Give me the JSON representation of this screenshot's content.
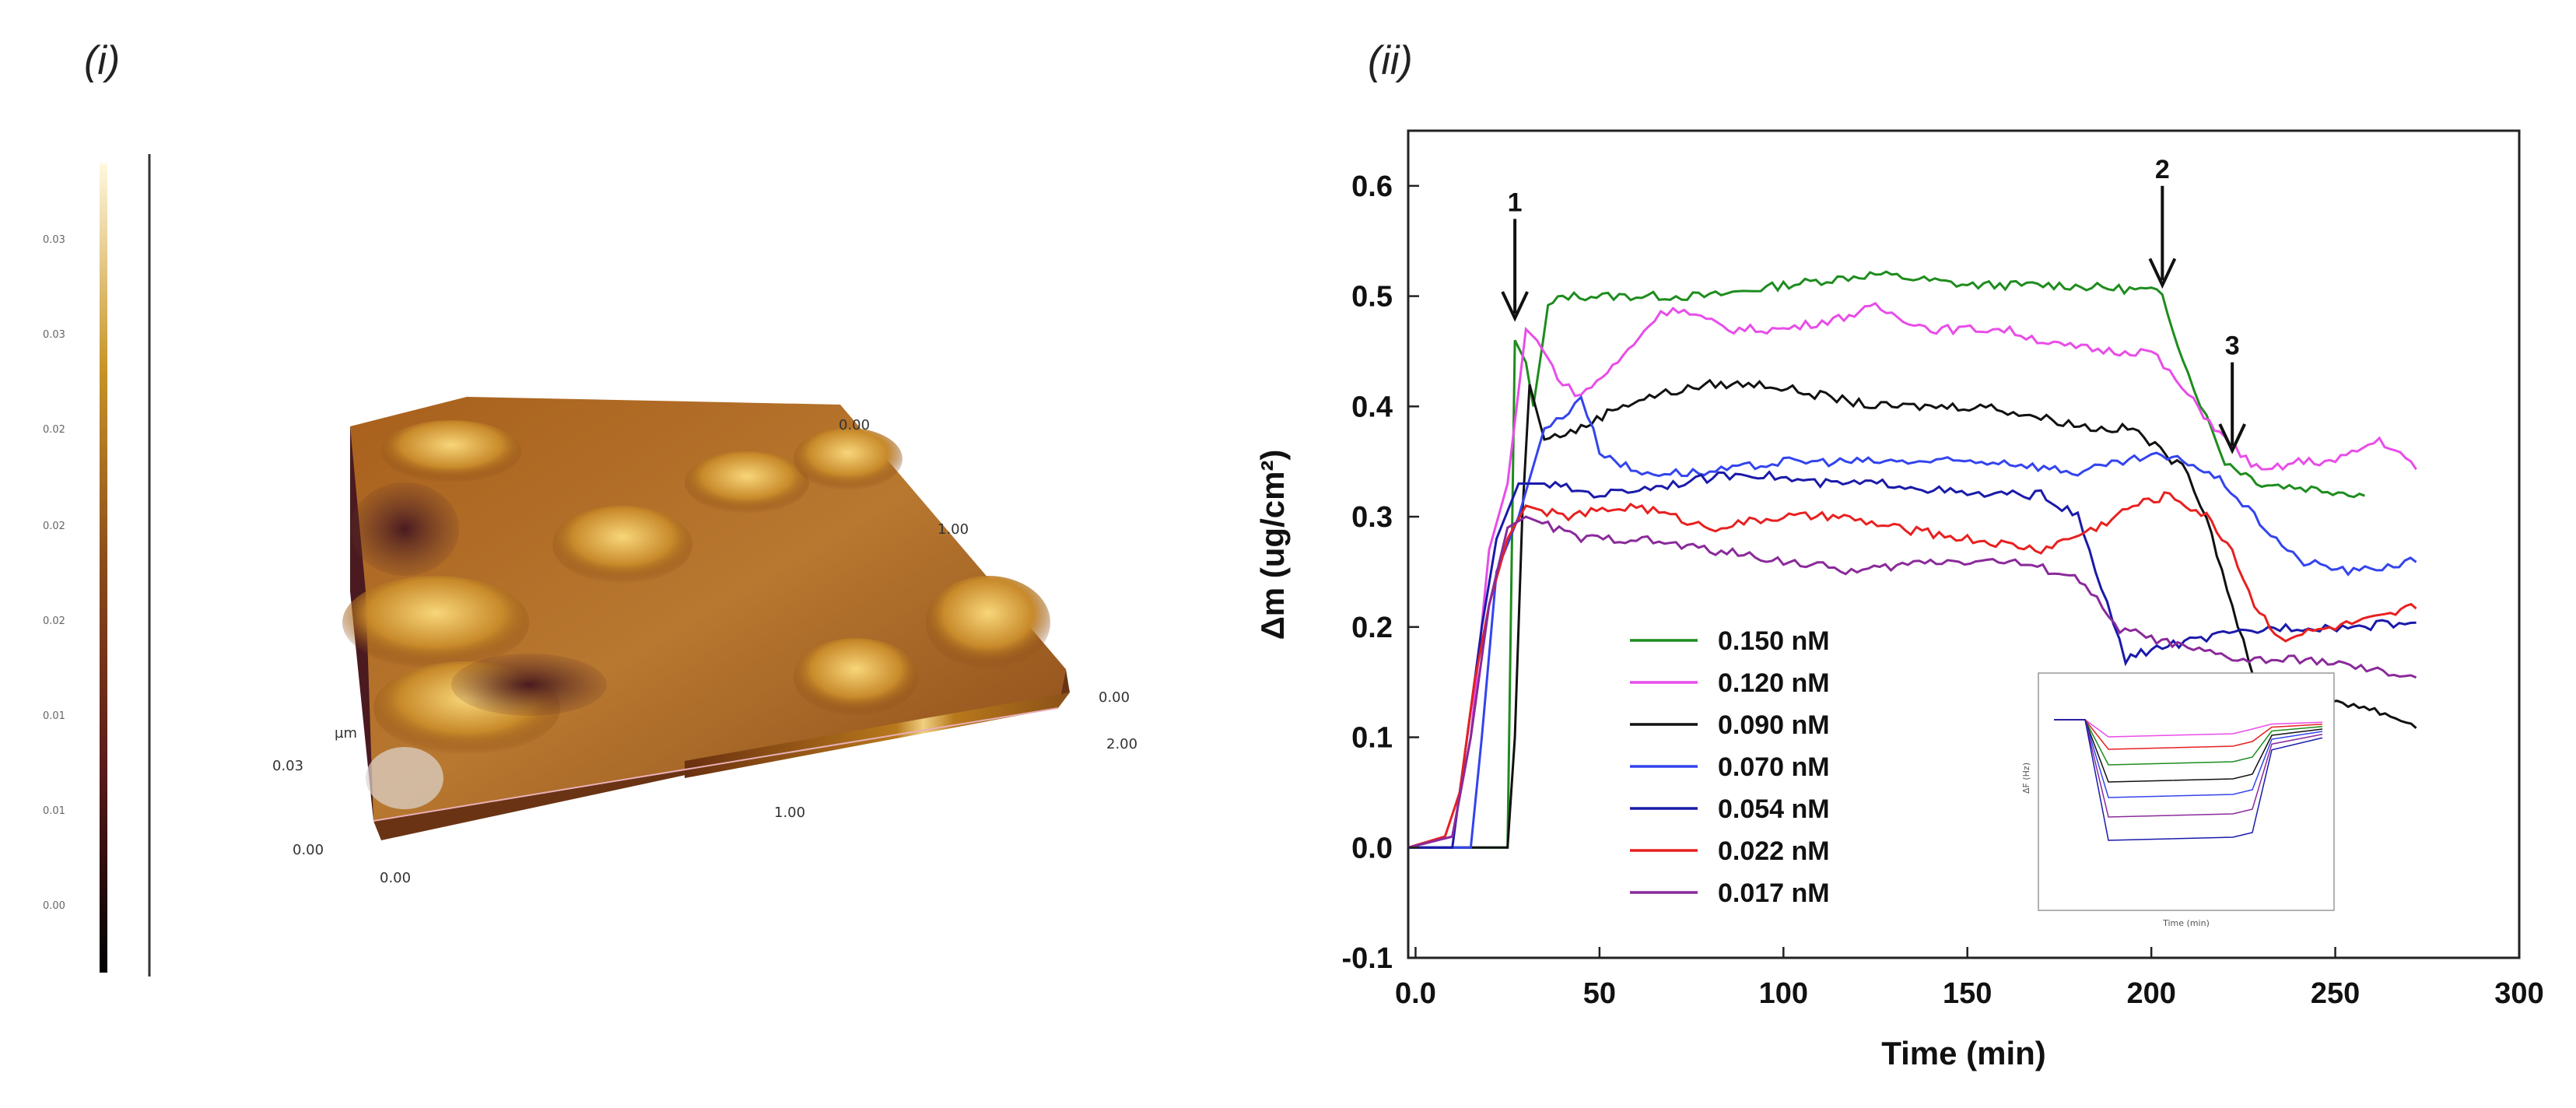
{
  "panels": {
    "left_label": "(i)",
    "right_label": "(ii)"
  },
  "afm": {
    "colorbar_ticks": [
      "0.03",
      "0.03",
      "0.02",
      "0.02",
      "0.02",
      "0.01",
      "0.01",
      "0.00"
    ],
    "z_unit": "µm",
    "z_top": "0.03",
    "z_bottom": "0.00",
    "x_origin": "0.00",
    "x_mid": "1.00",
    "right_top": "0.00",
    "right_bottom": "2.00",
    "back_top": "0.00",
    "back_mid": "1.00"
  },
  "chart_data": {
    "type": "line",
    "title": "",
    "xlabel": "Time (min)",
    "ylabel": "Δm (ug/cm²)",
    "xlim": [
      -2,
      300
    ],
    "ylim": [
      -0.1,
      0.65
    ],
    "xticks": [
      "0.0",
      "50",
      "100",
      "150",
      "200",
      "250",
      "300"
    ],
    "xtick_values": [
      0,
      50,
      100,
      150,
      200,
      250,
      300
    ],
    "yticks": [
      "-0.1",
      "0.0",
      "0.1",
      "0.2",
      "0.3",
      "0.4",
      "0.5",
      "0.6"
    ],
    "ytick_values": [
      -0.1,
      0.0,
      0.1,
      0.2,
      0.3,
      0.4,
      0.5,
      0.6
    ],
    "legend_position": "lower-center",
    "series": [
      {
        "name": "0.150 nM",
        "color": "#1e8c1e",
        "points": [
          [
            -2,
            0
          ],
          [
            22,
            0
          ],
          [
            25,
            0
          ],
          [
            27,
            0.46
          ],
          [
            30,
            0.44
          ],
          [
            32,
            0.4
          ],
          [
            36,
            0.49
          ],
          [
            40,
            0.5
          ],
          [
            60,
            0.5
          ],
          [
            80,
            0.5
          ],
          [
            100,
            0.51
          ],
          [
            125,
            0.52
          ],
          [
            150,
            0.51
          ],
          [
            175,
            0.51
          ],
          [
            200,
            0.505
          ],
          [
            203,
            0.5
          ],
          [
            210,
            0.43
          ],
          [
            215,
            0.39
          ],
          [
            220,
            0.35
          ],
          [
            230,
            0.33
          ],
          [
            245,
            0.325
          ],
          [
            258,
            0.32
          ]
        ]
      },
      {
        "name": "0.120 nM",
        "color": "#e84de8",
        "points": [
          [
            -2,
            0
          ],
          [
            10,
            0.01
          ],
          [
            15,
            0.1
          ],
          [
            20,
            0.27
          ],
          [
            25,
            0.33
          ],
          [
            30,
            0.47
          ],
          [
            33,
            0.46
          ],
          [
            40,
            0.42
          ],
          [
            45,
            0.41
          ],
          [
            55,
            0.44
          ],
          [
            65,
            0.48
          ],
          [
            70,
            0.49
          ],
          [
            85,
            0.47
          ],
          [
            100,
            0.47
          ],
          [
            115,
            0.48
          ],
          [
            125,
            0.49
          ],
          [
            140,
            0.47
          ],
          [
            160,
            0.47
          ],
          [
            175,
            0.455
          ],
          [
            190,
            0.45
          ],
          [
            200,
            0.45
          ],
          [
            205,
            0.43
          ],
          [
            210,
            0.41
          ],
          [
            220,
            0.37
          ],
          [
            230,
            0.34
          ],
          [
            240,
            0.35
          ],
          [
            250,
            0.35
          ],
          [
            262,
            0.37
          ],
          [
            272,
            0.345
          ]
        ]
      },
      {
        "name": "0.090 nM",
        "color": "#111111",
        "points": [
          [
            -2,
            0
          ],
          [
            20,
            0
          ],
          [
            25,
            0
          ],
          [
            27,
            0.1
          ],
          [
            29,
            0.3
          ],
          [
            31,
            0.42
          ],
          [
            35,
            0.37
          ],
          [
            45,
            0.38
          ],
          [
            55,
            0.4
          ],
          [
            65,
            0.41
          ],
          [
            80,
            0.42
          ],
          [
            95,
            0.42
          ],
          [
            110,
            0.41
          ],
          [
            125,
            0.4
          ],
          [
            140,
            0.4
          ],
          [
            155,
            0.4
          ],
          [
            170,
            0.39
          ],
          [
            185,
            0.38
          ],
          [
            195,
            0.38
          ],
          [
            210,
            0.34
          ],
          [
            215,
            0.3
          ],
          [
            222,
            0.22
          ],
          [
            228,
            0.15
          ],
          [
            240,
            0.14
          ],
          [
            255,
            0.13
          ],
          [
            265,
            0.12
          ],
          [
            272,
            0.11
          ]
        ]
      },
      {
        "name": "0.070 nM",
        "color": "#3344ee",
        "points": [
          [
            -2,
            0
          ],
          [
            15,
            0
          ],
          [
            18,
            0.1
          ],
          [
            22,
            0.25
          ],
          [
            28,
            0.3
          ],
          [
            35,
            0.38
          ],
          [
            40,
            0.39
          ],
          [
            45,
            0.41
          ],
          [
            50,
            0.36
          ],
          [
            60,
            0.34
          ],
          [
            80,
            0.34
          ],
          [
            100,
            0.35
          ],
          [
            120,
            0.35
          ],
          [
            140,
            0.35
          ],
          [
            160,
            0.35
          ],
          [
            180,
            0.34
          ],
          [
            200,
            0.355
          ],
          [
            210,
            0.35
          ],
          [
            220,
            0.33
          ],
          [
            228,
            0.3
          ],
          [
            240,
            0.26
          ],
          [
            255,
            0.25
          ],
          [
            272,
            0.26
          ]
        ]
      },
      {
        "name": "0.054 nM",
        "color": "#1a1aaa",
        "points": [
          [
            -2,
            0
          ],
          [
            10,
            0
          ],
          [
            14,
            0.1
          ],
          [
            18,
            0.2
          ],
          [
            22,
            0.28
          ],
          [
            28,
            0.33
          ],
          [
            35,
            0.33
          ],
          [
            50,
            0.32
          ],
          [
            70,
            0.33
          ],
          [
            90,
            0.34
          ],
          [
            110,
            0.33
          ],
          [
            130,
            0.33
          ],
          [
            150,
            0.32
          ],
          [
            170,
            0.32
          ],
          [
            180,
            0.3
          ],
          [
            188,
            0.22
          ],
          [
            193,
            0.17
          ],
          [
            200,
            0.18
          ],
          [
            215,
            0.19
          ],
          [
            235,
            0.2
          ],
          [
            255,
            0.2
          ],
          [
            272,
            0.205
          ]
        ]
      },
      {
        "name": "0.022 nM",
        "color": "#e82020",
        "points": [
          [
            -2,
            0
          ],
          [
            8,
            0.01
          ],
          [
            12,
            0.05
          ],
          [
            16,
            0.15
          ],
          [
            20,
            0.22
          ],
          [
            25,
            0.28
          ],
          [
            30,
            0.31
          ],
          [
            40,
            0.3
          ],
          [
            60,
            0.31
          ],
          [
            80,
            0.29
          ],
          [
            100,
            0.3
          ],
          [
            115,
            0.3
          ],
          [
            130,
            0.29
          ],
          [
            150,
            0.28
          ],
          [
            170,
            0.27
          ],
          [
            185,
            0.29
          ],
          [
            195,
            0.31
          ],
          [
            205,
            0.32
          ],
          [
            215,
            0.3
          ],
          [
            222,
            0.27
          ],
          [
            228,
            0.22
          ],
          [
            235,
            0.19
          ],
          [
            250,
            0.2
          ],
          [
            265,
            0.21
          ],
          [
            272,
            0.22
          ]
        ]
      },
      {
        "name": "0.017 nM",
        "color": "#8a2a9a",
        "points": [
          [
            -2,
            0
          ],
          [
            10,
            0.01
          ],
          [
            15,
            0.1
          ],
          [
            20,
            0.22
          ],
          [
            25,
            0.29
          ],
          [
            30,
            0.3
          ],
          [
            45,
            0.28
          ],
          [
            60,
            0.28
          ],
          [
            80,
            0.27
          ],
          [
            100,
            0.26
          ],
          [
            120,
            0.25
          ],
          [
            140,
            0.26
          ],
          [
            160,
            0.26
          ],
          [
            175,
            0.25
          ],
          [
            182,
            0.24
          ],
          [
            190,
            0.2
          ],
          [
            200,
            0.19
          ],
          [
            210,
            0.18
          ],
          [
            225,
            0.17
          ],
          [
            245,
            0.17
          ],
          [
            260,
            0.16
          ],
          [
            272,
            0.155
          ]
        ]
      }
    ],
    "annotations": [
      {
        "label": "1",
        "x": 27,
        "y_from": 0.57,
        "y_to": 0.48
      },
      {
        "label": "2",
        "x": 203,
        "y_from": 0.6,
        "y_to": 0.51
      },
      {
        "label": "3",
        "x": 222,
        "y_from": 0.44,
        "y_to": 0.36
      }
    ],
    "inset": {
      "xlabel": "Time (min)",
      "ylabel": "ΔF (Hz)"
    }
  }
}
